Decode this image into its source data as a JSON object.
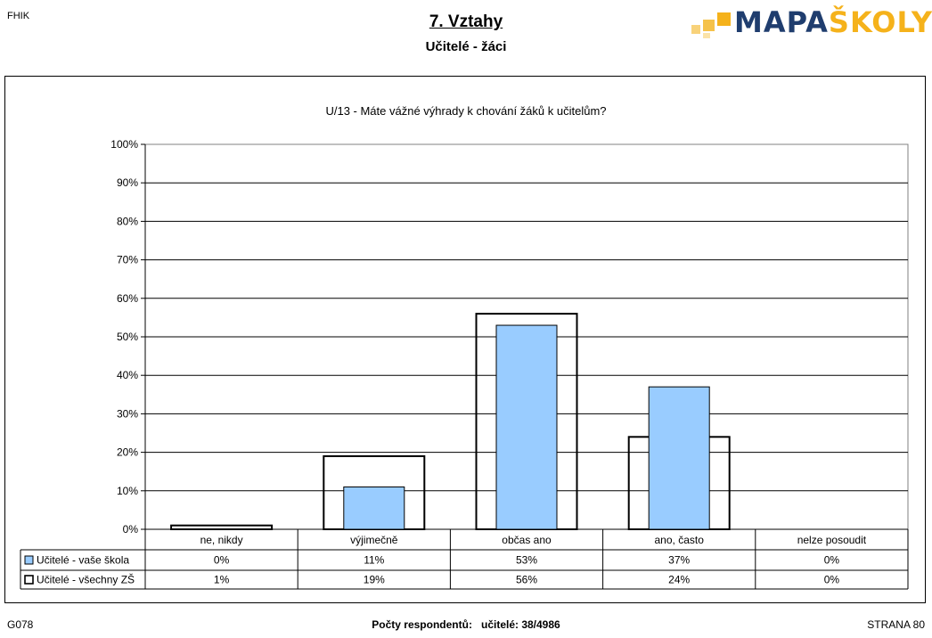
{
  "header": {
    "corner_code": "FHIK",
    "title": "7. Vztahy",
    "subtitle": "Učitelé - žáci",
    "logo_part1": "MAPA",
    "logo_part2": "ŠKOLY"
  },
  "colors": {
    "series1_fill": "#99ccff",
    "series2_fill": "none",
    "logo_dark": "#1f3d6e",
    "logo_accent": "#f5b21b"
  },
  "chart_data": {
    "type": "bar",
    "title": "U/13 - Máte vážné výhrady k chování žáků k učitelům?",
    "categories": [
      "ne, nikdy",
      "výjimečně",
      "občas ano",
      "ano, často",
      "nelze posoudit"
    ],
    "series": [
      {
        "name": "Učitelé - vaše škola",
        "values": [
          0,
          11,
          53,
          37,
          0
        ],
        "labels": [
          "0%",
          "11%",
          "53%",
          "37%",
          "0%"
        ]
      },
      {
        "name": "Učitelé - všechny ZŠ",
        "values": [
          1,
          19,
          56,
          24,
          0
        ],
        "labels": [
          "1%",
          "19%",
          "56%",
          "24%",
          "0%"
        ]
      }
    ],
    "yticks": [
      "0%",
      "10%",
      "20%",
      "30%",
      "40%",
      "50%",
      "60%",
      "70%",
      "80%",
      "90%",
      "100%"
    ],
    "ylim": [
      0,
      100
    ],
    "grid": true,
    "legend": "data-table"
  },
  "footer": {
    "left": "G078",
    "respondents_label": "Počty respondentů:",
    "respondents_value": "učitelé: 38/4986",
    "right": "STRANA 80"
  }
}
